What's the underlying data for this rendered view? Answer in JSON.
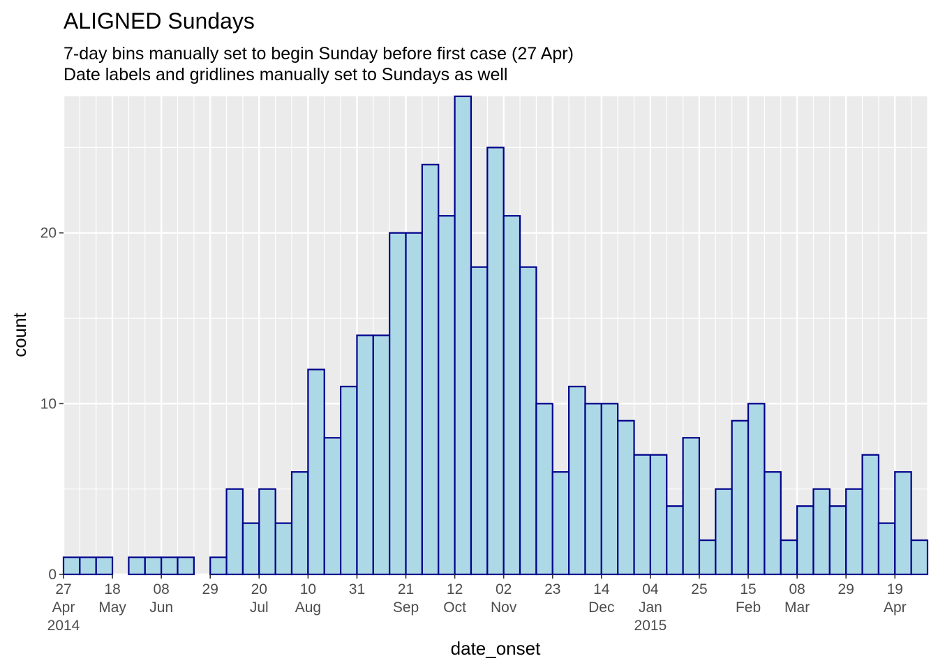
{
  "chart_data": {
    "type": "bar",
    "title": "ALIGNED Sundays",
    "subtitle_lines": [
      "7-day bins manually set to begin Sunday before first case (27 Apr)",
      "Date labels and gridlines manually set to Sundays as well"
    ],
    "xlabel": "date_onset",
    "ylabel": "count",
    "bin_start": "2014-04-27",
    "bin_days": 7,
    "values": [
      1,
      1,
      1,
      0,
      1,
      1,
      1,
      1,
      0,
      1,
      5,
      3,
      5,
      3,
      6,
      12,
      8,
      11,
      14,
      14,
      20,
      20,
      24,
      21,
      28,
      18,
      25,
      21,
      18,
      10,
      6,
      11,
      10,
      10,
      9,
      7,
      7,
      4,
      8,
      2,
      5,
      9,
      10,
      6,
      2,
      4,
      5,
      4,
      5,
      7,
      3,
      6,
      2
    ],
    "ylim": [
      0,
      28
    ],
    "yticks": [
      0,
      10,
      20
    ],
    "xticks": [
      {
        "date": "2014-04-27",
        "lines": [
          "27",
          "Apr",
          "2014"
        ]
      },
      {
        "date": "2014-05-18",
        "lines": [
          "18",
          "May"
        ]
      },
      {
        "date": "2014-06-08",
        "lines": [
          "08",
          "Jun"
        ]
      },
      {
        "date": "2014-06-29",
        "lines": [
          "29"
        ]
      },
      {
        "date": "2014-07-20",
        "lines": [
          "20",
          "Jul"
        ]
      },
      {
        "date": "2014-08-10",
        "lines": [
          "10",
          "Aug"
        ]
      },
      {
        "date": "2014-08-31",
        "lines": [
          "31"
        ]
      },
      {
        "date": "2014-09-21",
        "lines": [
          "21",
          "Sep"
        ]
      },
      {
        "date": "2014-10-12",
        "lines": [
          "12",
          "Oct"
        ]
      },
      {
        "date": "2014-11-02",
        "lines": [
          "02",
          "Nov"
        ]
      },
      {
        "date": "2014-11-23",
        "lines": [
          "23"
        ]
      },
      {
        "date": "2014-12-14",
        "lines": [
          "14",
          "Dec"
        ]
      },
      {
        "date": "2015-01-04",
        "lines": [
          "04",
          "Jan",
          "2015"
        ]
      },
      {
        "date": "2015-01-25",
        "lines": [
          "25"
        ]
      },
      {
        "date": "2015-02-15",
        "lines": [
          "15",
          "Feb"
        ]
      },
      {
        "date": "2015-03-08",
        "lines": [
          "08",
          "Mar"
        ]
      },
      {
        "date": "2015-03-29",
        "lines": [
          "29"
        ]
      },
      {
        "date": "2015-04-19",
        "lines": [
          "19",
          "Apr"
        ]
      }
    ],
    "grid": true,
    "colors": {
      "panel": "#ebebeb",
      "grid": "#ffffff",
      "bar_fill": "#add8e6",
      "bar_stroke": "#00008b",
      "tick_text": "#4d4d4d"
    }
  }
}
